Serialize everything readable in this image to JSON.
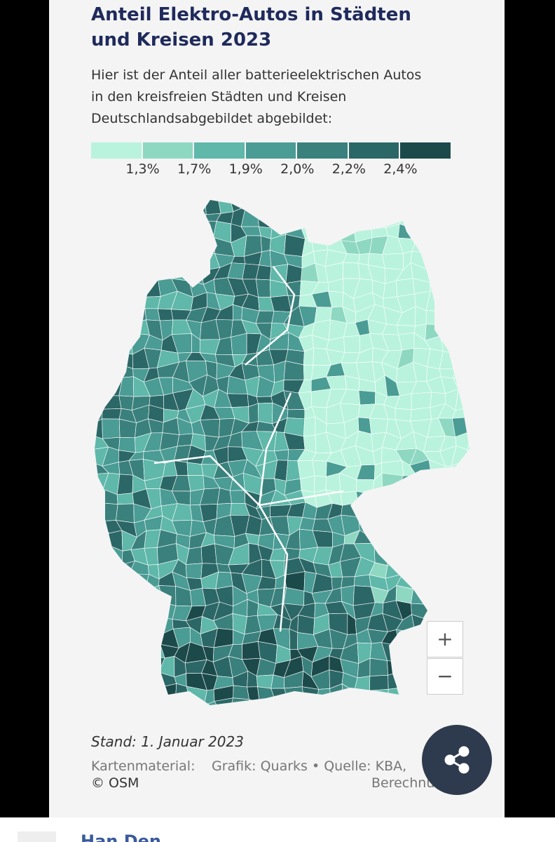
{
  "header": {
    "title_lines": [
      "Anteil Elektro-Autos in Städten",
      "und Kreisen 2023"
    ],
    "subtitle_lines": [
      "Hier ist der Anteil aller batterieelektrischen Autos",
      "in den kreisfreien Städten und Kreisen",
      "Deutschlandsabgebildet abgebildet:"
    ]
  },
  "legend": {
    "colors": [
      "#b9f3dd",
      "#8ed8c2",
      "#5fb8aa",
      "#4a9c95",
      "#3a817d",
      "#2b6766",
      "#1c4a4b"
    ],
    "labels": [
      "1,3%",
      "1,7%",
      "1,9%",
      "2,0%",
      "2,2%",
      "2,4%"
    ]
  },
  "map": {
    "zoom_in": "+",
    "zoom_out": "−"
  },
  "footer": {
    "date": "Stand: 1. Januar 2023",
    "source_label": "Kartenmaterial:",
    "source": "Grafik: Quarks • Quelle: KBA,",
    "source_cont": "Berechnu",
    "osm": "© OSM"
  },
  "next_post": {
    "author": "Han Den"
  }
}
